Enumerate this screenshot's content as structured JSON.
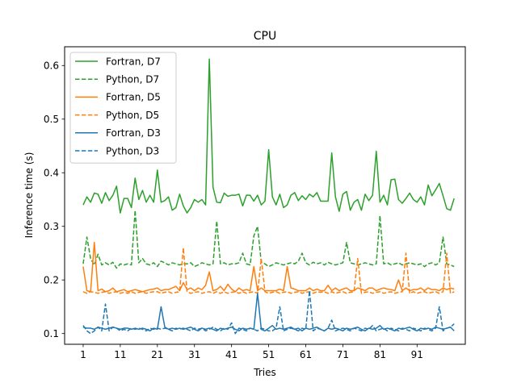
{
  "chart_data": {
    "type": "line",
    "title": "CPU",
    "xlabel": "Tries",
    "ylabel": "Inference time (s)",
    "xlim": [
      -4,
      104
    ],
    "ylim": [
      0.08,
      0.635
    ],
    "xticks": [
      1,
      11,
      21,
      31,
      41,
      51,
      61,
      71,
      81,
      91
    ],
    "yticks": [
      0.1,
      0.2,
      0.3,
      0.4,
      0.5,
      0.6
    ],
    "ytick_labels": [
      "0.1",
      "0.2",
      "0.3",
      "0.4",
      "0.5",
      "0.6"
    ],
    "grid": false,
    "legend_position": "top-left",
    "x_start": 1,
    "series": [
      {
        "name": "Fortran, D7",
        "color": "#2ca02c",
        "dash": "solid",
        "values": [
          0.34,
          0.355,
          0.345,
          0.362,
          0.36,
          0.343,
          0.363,
          0.348,
          0.358,
          0.375,
          0.325,
          0.352,
          0.352,
          0.335,
          0.39,
          0.35,
          0.367,
          0.345,
          0.358,
          0.345,
          0.405,
          0.345,
          0.348,
          0.355,
          0.33,
          0.335,
          0.36,
          0.338,
          0.325,
          0.335,
          0.35,
          0.345,
          0.35,
          0.34,
          0.612,
          0.373,
          0.345,
          0.344,
          0.362,
          0.356,
          0.358,
          0.358,
          0.36,
          0.338,
          0.358,
          0.358,
          0.347,
          0.358,
          0.34,
          0.347,
          0.443,
          0.355,
          0.34,
          0.36,
          0.335,
          0.34,
          0.358,
          0.363,
          0.348,
          0.357,
          0.35,
          0.36,
          0.355,
          0.363,
          0.347,
          0.347,
          0.347,
          0.437,
          0.355,
          0.328,
          0.36,
          0.365,
          0.33,
          0.345,
          0.35,
          0.33,
          0.36,
          0.348,
          0.358,
          0.44,
          0.345,
          0.358,
          0.34,
          0.387,
          0.388,
          0.35,
          0.343,
          0.352,
          0.362,
          0.35,
          0.345,
          0.355,
          0.34,
          0.377,
          0.357,
          0.368,
          0.38,
          0.357,
          0.333,
          0.33,
          0.352
        ]
      },
      {
        "name": "Python, D7",
        "color": "#2ca02c",
        "dash": "dashed",
        "values": [
          0.23,
          0.28,
          0.24,
          0.228,
          0.248,
          0.228,
          0.232,
          0.228,
          0.233,
          0.222,
          0.23,
          0.228,
          0.23,
          0.228,
          0.33,
          0.232,
          0.24,
          0.23,
          0.228,
          0.232,
          0.225,
          0.235,
          0.232,
          0.228,
          0.232,
          0.23,
          0.228,
          0.23,
          0.23,
          0.232,
          0.225,
          0.228,
          0.232,
          0.23,
          0.228,
          0.23,
          0.31,
          0.23,
          0.232,
          0.228,
          0.23,
          0.23,
          0.232,
          0.25,
          0.23,
          0.228,
          0.282,
          0.3,
          0.233,
          0.23,
          0.225,
          0.228,
          0.232,
          0.23,
          0.228,
          0.23,
          0.232,
          0.23,
          0.235,
          0.25,
          0.232,
          0.228,
          0.233,
          0.23,
          0.232,
          0.228,
          0.233,
          0.23,
          0.228,
          0.23,
          0.232,
          0.27,
          0.232,
          0.23,
          0.228,
          0.23,
          0.232,
          0.23,
          0.228,
          0.23,
          0.32,
          0.23,
          0.232,
          0.228,
          0.23,
          0.232,
          0.228,
          0.23,
          0.232,
          0.23,
          0.228,
          0.23,
          0.225,
          0.23,
          0.232,
          0.228,
          0.232,
          0.28,
          0.23,
          0.228,
          0.225
        ]
      },
      {
        "name": "Fortran, D5",
        "color": "#ff7f0e",
        "dash": "solid",
        "values": [
          0.225,
          0.18,
          0.178,
          0.27,
          0.18,
          0.183,
          0.178,
          0.18,
          0.185,
          0.178,
          0.18,
          0.182,
          0.178,
          0.18,
          0.182,
          0.18,
          0.178,
          0.18,
          0.182,
          0.183,
          0.185,
          0.18,
          0.182,
          0.182,
          0.185,
          0.188,
          0.18,
          0.195,
          0.182,
          0.185,
          0.18,
          0.185,
          0.182,
          0.19,
          0.215,
          0.18,
          0.182,
          0.188,
          0.18,
          0.192,
          0.183,
          0.178,
          0.185,
          0.18,
          0.182,
          0.18,
          0.225,
          0.18,
          0.185,
          0.18,
          0.18,
          0.18,
          0.18,
          0.183,
          0.18,
          0.225,
          0.185,
          0.183,
          0.18,
          0.18,
          0.18,
          0.185,
          0.18,
          0.183,
          0.18,
          0.18,
          0.19,
          0.18,
          0.185,
          0.18,
          0.183,
          0.185,
          0.18,
          0.18,
          0.185,
          0.183,
          0.18,
          0.185,
          0.185,
          0.18,
          0.183,
          0.185,
          0.183,
          0.182,
          0.18,
          0.2,
          0.18,
          0.185,
          0.18,
          0.182,
          0.182,
          0.185,
          0.18,
          0.185,
          0.182,
          0.182,
          0.18,
          0.185,
          0.182,
          0.185,
          0.183
        ]
      },
      {
        "name": "Python, D5",
        "color": "#ff7f0e",
        "dash": "dashed",
        "values": [
          0.178,
          0.175,
          0.178,
          0.177,
          0.175,
          0.177,
          0.178,
          0.175,
          0.177,
          0.178,
          0.175,
          0.177,
          0.175,
          0.178,
          0.175,
          0.177,
          0.178,
          0.175,
          0.177,
          0.178,
          0.178,
          0.175,
          0.177,
          0.178,
          0.175,
          0.177,
          0.178,
          0.26,
          0.178,
          0.175,
          0.177,
          0.178,
          0.175,
          0.177,
          0.178,
          0.175,
          0.178,
          0.175,
          0.178,
          0.175,
          0.177,
          0.178,
          0.175,
          0.178,
          0.175,
          0.177,
          0.178,
          0.175,
          0.24,
          0.178,
          0.175,
          0.177,
          0.178,
          0.175,
          0.177,
          0.178,
          0.175,
          0.177,
          0.178,
          0.175,
          0.177,
          0.178,
          0.175,
          0.178,
          0.177,
          0.178,
          0.175,
          0.178,
          0.175,
          0.177,
          0.178,
          0.175,
          0.177,
          0.178,
          0.24,
          0.175,
          0.177,
          0.178,
          0.175,
          0.177,
          0.178,
          0.175,
          0.177,
          0.178,
          0.175,
          0.177,
          0.178,
          0.25,
          0.175,
          0.178,
          0.175,
          0.177,
          0.178,
          0.175,
          0.177,
          0.178,
          0.175,
          0.178,
          0.25,
          0.175,
          0.178
        ]
      },
      {
        "name": "Fortran, D3",
        "color": "#1f77b4",
        "dash": "solid",
        "values": [
          0.112,
          0.11,
          0.11,
          0.108,
          0.112,
          0.11,
          0.108,
          0.11,
          0.112,
          0.11,
          0.108,
          0.11,
          0.11,
          0.108,
          0.11,
          0.108,
          0.11,
          0.108,
          0.105,
          0.11,
          0.108,
          0.15,
          0.112,
          0.108,
          0.11,
          0.108,
          0.11,
          0.108,
          0.11,
          0.112,
          0.108,
          0.105,
          0.11,
          0.108,
          0.11,
          0.108,
          0.105,
          0.11,
          0.108,
          0.11,
          0.112,
          0.108,
          0.105,
          0.11,
          0.108,
          0.11,
          0.108,
          0.175,
          0.108,
          0.105,
          0.11,
          0.115,
          0.108,
          0.11,
          0.108,
          0.11,
          0.112,
          0.108,
          0.11,
          0.105,
          0.11,
          0.108,
          0.11,
          0.112,
          0.108,
          0.105,
          0.11,
          0.108,
          0.11,
          0.108,
          0.105,
          0.11,
          0.108,
          0.11,
          0.112,
          0.108,
          0.105,
          0.11,
          0.108,
          0.11,
          0.115,
          0.108,
          0.11,
          0.108,
          0.105,
          0.11,
          0.108,
          0.11,
          0.112,
          0.108,
          0.105,
          0.11,
          0.108,
          0.11,
          0.108,
          0.112,
          0.11,
          0.108,
          0.11,
          0.112,
          0.105
        ]
      },
      {
        "name": "Python, D3",
        "color": "#1f77b4",
        "dash": "dashed",
        "values": [
          0.115,
          0.105,
          0.1,
          0.105,
          0.112,
          0.105,
          0.155,
          0.105,
          0.112,
          0.11,
          0.105,
          0.108,
          0.105,
          0.11,
          0.108,
          0.11,
          0.108,
          0.105,
          0.11,
          0.108,
          0.11,
          0.108,
          0.11,
          0.108,
          0.105,
          0.11,
          0.108,
          0.11,
          0.108,
          0.105,
          0.11,
          0.108,
          0.11,
          0.105,
          0.108,
          0.112,
          0.108,
          0.105,
          0.11,
          0.108,
          0.12,
          0.1,
          0.11,
          0.108,
          0.105,
          0.11,
          0.108,
          0.105,
          0.11,
          0.108,
          0.105,
          0.105,
          0.11,
          0.15,
          0.105,
          0.108,
          0.11,
          0.108,
          0.105,
          0.11,
          0.108,
          0.18,
          0.105,
          0.11,
          0.108,
          0.105,
          0.11,
          0.125,
          0.105,
          0.108,
          0.11,
          0.108,
          0.105,
          0.11,
          0.108,
          0.105,
          0.11,
          0.108,
          0.115,
          0.105,
          0.108,
          0.11,
          0.105,
          0.11,
          0.108,
          0.105,
          0.11,
          0.108,
          0.105,
          0.11,
          0.108,
          0.105,
          0.11,
          0.108,
          0.105,
          0.11,
          0.15,
          0.105,
          0.11,
          0.112,
          0.118
        ]
      }
    ]
  }
}
